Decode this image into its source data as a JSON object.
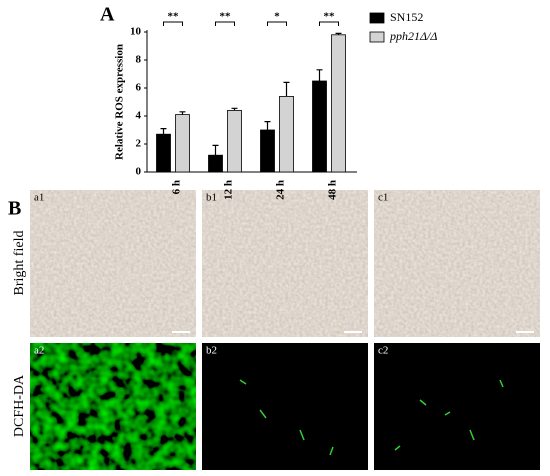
{
  "chart_data": {
    "type": "bar",
    "panel_label": "A",
    "y_label": "Relative ROS expression",
    "categories": [
      "6 h",
      "12 h",
      "24 h",
      "48 h"
    ],
    "series": [
      {
        "name": "SN152",
        "color": "#000000",
        "values": [
          2.7,
          1.2,
          3.0,
          6.5
        ],
        "errors": [
          0.4,
          0.7,
          0.6,
          0.8
        ]
      },
      {
        "name": "pph21Δ/Δ",
        "color": "#d3d3d3",
        "values": [
          4.1,
          4.4,
          5.4,
          9.8
        ],
        "errors": [
          0.2,
          0.15,
          1.0,
          0.1
        ]
      }
    ],
    "annotations": [
      "**",
      "**",
      "*",
      "**"
    ],
    "ylim": [
      0,
      10
    ],
    "yticks": [
      0,
      2,
      4,
      6,
      8,
      10
    ],
    "grid": false,
    "legend": "right"
  },
  "panel_b": {
    "label": "B",
    "row_labels": [
      "Bright field",
      "DCFH-DA"
    ],
    "image_labels": [
      "a1",
      "b1",
      "c1",
      "a2",
      "b2",
      "c2"
    ]
  }
}
